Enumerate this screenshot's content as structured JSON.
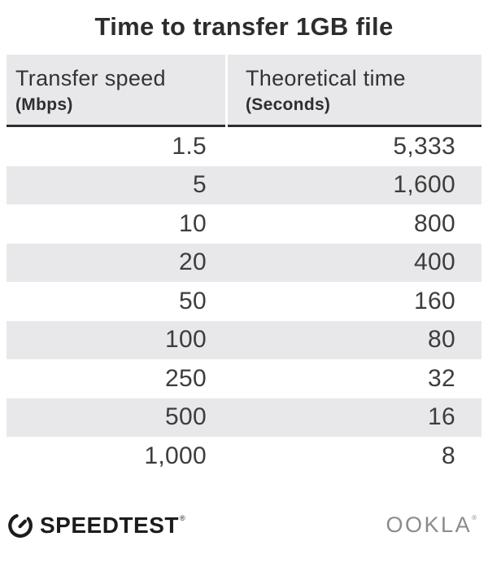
{
  "title": "Time to transfer 1GB file",
  "table": {
    "columns": [
      {
        "label": "Transfer speed",
        "unit": "(Mbps)"
      },
      {
        "label": "Theoretical time",
        "unit": "(Seconds)"
      }
    ],
    "rows": [
      [
        "1.5",
        "5,333"
      ],
      [
        "5",
        "1,600"
      ],
      [
        "10",
        "800"
      ],
      [
        "20",
        "400"
      ],
      [
        "50",
        "160"
      ],
      [
        "100",
        "80"
      ],
      [
        "250",
        "32"
      ],
      [
        "500",
        "16"
      ],
      [
        "1,000",
        "8"
      ]
    ]
  },
  "footer": {
    "speedtest": "SPEEDTEST",
    "speedtest_mark": "®",
    "ookla": "OOKLA",
    "ookla_mark": "®"
  },
  "colors": {
    "stripe": "#e8e8eb",
    "header_bg": "#e8e8eb",
    "header_rule": "#2e2e2e",
    "body_text": "#3d3d3d",
    "title_text": "#2d2d2d",
    "logo_black": "#1c1c1c",
    "ookla_gray": "#8b8b8b"
  },
  "chart_data": {
    "type": "table",
    "title": "Time to transfer 1GB file",
    "columns": [
      "Transfer speed (Mbps)",
      "Theoretical time (Seconds)"
    ],
    "rows": [
      [
        1.5,
        5333
      ],
      [
        5,
        1600
      ],
      [
        10,
        800
      ],
      [
        20,
        400
      ],
      [
        50,
        160
      ],
      [
        100,
        80
      ],
      [
        250,
        32
      ],
      [
        500,
        16
      ],
      [
        1000,
        8
      ]
    ]
  }
}
